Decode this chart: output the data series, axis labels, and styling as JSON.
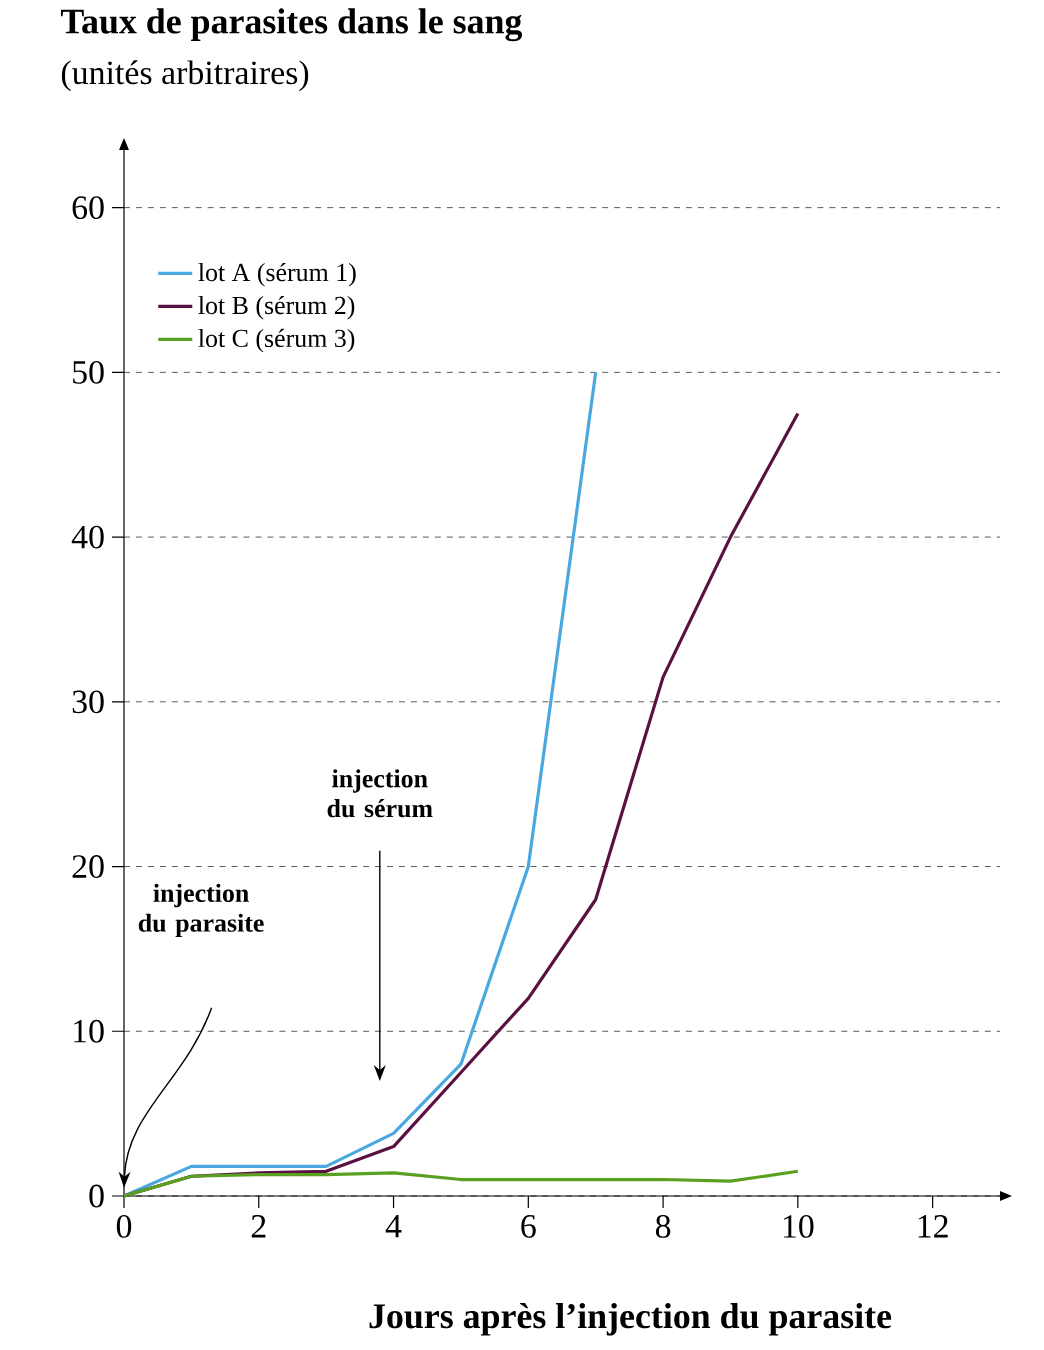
{
  "chart_data": {
    "type": "line",
    "title": "Taux de parasites dans le sang",
    "subtitle": "(unités arbitraires)",
    "xlabel": "Jours après l’injection du parasite",
    "x": [
      0,
      1,
      2,
      3,
      4,
      5,
      6,
      7,
      8,
      9,
      10
    ],
    "series": [
      {
        "name": "lot A (sérum 1)",
        "color": "#4aa8e0",
        "values": [
          0,
          1.8,
          1.8,
          1.8,
          3.8,
          8,
          20,
          50,
          null,
          null,
          null
        ]
      },
      {
        "name": "lot B (sérum 2)",
        "color": "#5a1040",
        "values": [
          0,
          1.2,
          1.4,
          1.5,
          3,
          7.5,
          12,
          18,
          31.5,
          40,
          47.5
        ]
      },
      {
        "name": "lot C (sérum 3)",
        "color": "#5aa020",
        "values": [
          0,
          1.2,
          1.3,
          1.3,
          1.4,
          1.0,
          1.0,
          1.0,
          1.0,
          0.9,
          1.5
        ]
      }
    ],
    "xlim": [
      0,
      13
    ],
    "ylim": [
      0,
      63.5
    ],
    "xticks": [
      0,
      2,
      4,
      6,
      8,
      10,
      12
    ],
    "yticks": [
      0,
      10,
      20,
      30,
      40,
      50,
      60
    ],
    "grid": "y",
    "legend": "top left",
    "annotations": [
      "injection du parasite",
      "injection du sérum"
    ]
  }
}
